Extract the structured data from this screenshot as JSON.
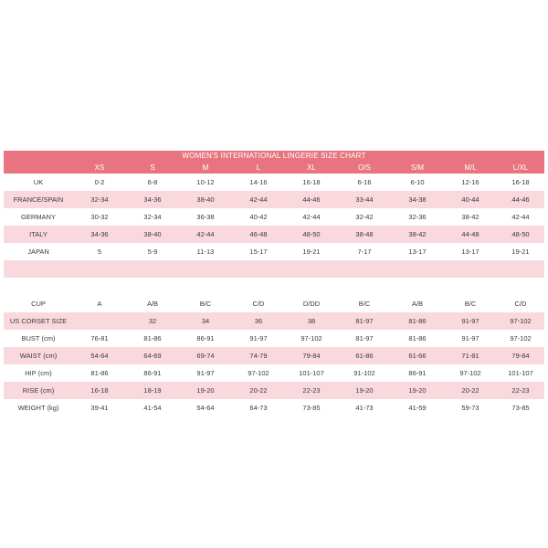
{
  "title": "WOMEN'S INTERNATIONAL LINGERIE SIZE CHART",
  "colors": {
    "accent": "#e8747f",
    "band": "#f9d9de"
  },
  "header": [
    "",
    "XS",
    "S",
    "M",
    "L",
    "XL",
    "O/S",
    "S/M",
    "M/L",
    "L/XL"
  ],
  "size_rows": [
    [
      "UK",
      "0-2",
      "6-8",
      "10-12",
      "14-16",
      "16-18",
      "6-16",
      "6-10",
      "12-16",
      "16-18"
    ],
    [
      "FRANCE/SPAIN",
      "32-34",
      "34-36",
      "38-40",
      "42-44",
      "44-46",
      "33-44",
      "34-38",
      "40-44",
      "44-46"
    ],
    [
      "GERMANY",
      "30-32",
      "32-34",
      "36-38",
      "40-42",
      "42-44",
      "32-42",
      "32-36",
      "38-42",
      "42-44"
    ],
    [
      "ITALY",
      "34-36",
      "38-40",
      "42-44",
      "46-48",
      "48-50",
      "38-48",
      "38-42",
      "44-48",
      "48-50"
    ],
    [
      "JAPAN",
      "5",
      "5-9",
      "11-13",
      "15-17",
      "19-21",
      "7-17",
      "13-17",
      "13-17",
      "19-21"
    ]
  ],
  "measure_rows": [
    [
      "CUP",
      "A",
      "A/B",
      "B/C",
      "C/D",
      "D/DD",
      "B/C",
      "A/B",
      "B/C",
      "C/D"
    ],
    [
      "US CORSET SIZE",
      "",
      "32",
      "34",
      "36",
      "38",
      "81-97",
      "81-86",
      "91-97",
      "97-102"
    ],
    [
      "BUST (cm)",
      "76-81",
      "81-86",
      "86-91",
      "91-97",
      "97-102",
      "81-97",
      "81-86",
      "91-97",
      "97-102"
    ],
    [
      "WAIST (cm)",
      "54-64",
      "64-69",
      "69-74",
      "74-79",
      "79-84",
      "61-86",
      "61-66",
      "71-81",
      "79-84"
    ],
    [
      "HIP (cm)",
      "81-86",
      "86-91",
      "91-97",
      "97-102",
      "101-107",
      "91-102",
      "86-91",
      "97-102",
      "101-107"
    ],
    [
      "RISE (cm)",
      "16-18",
      "18-19",
      "19-20",
      "20-22",
      "22-23",
      "19-20",
      "19-20",
      "20-22",
      "22-23"
    ],
    [
      "WEIGHT (kg)",
      "39-41",
      "41-54",
      "54-64",
      "64-73",
      "73-85",
      "41-73",
      "41-59",
      "59-73",
      "73-85"
    ]
  ]
}
